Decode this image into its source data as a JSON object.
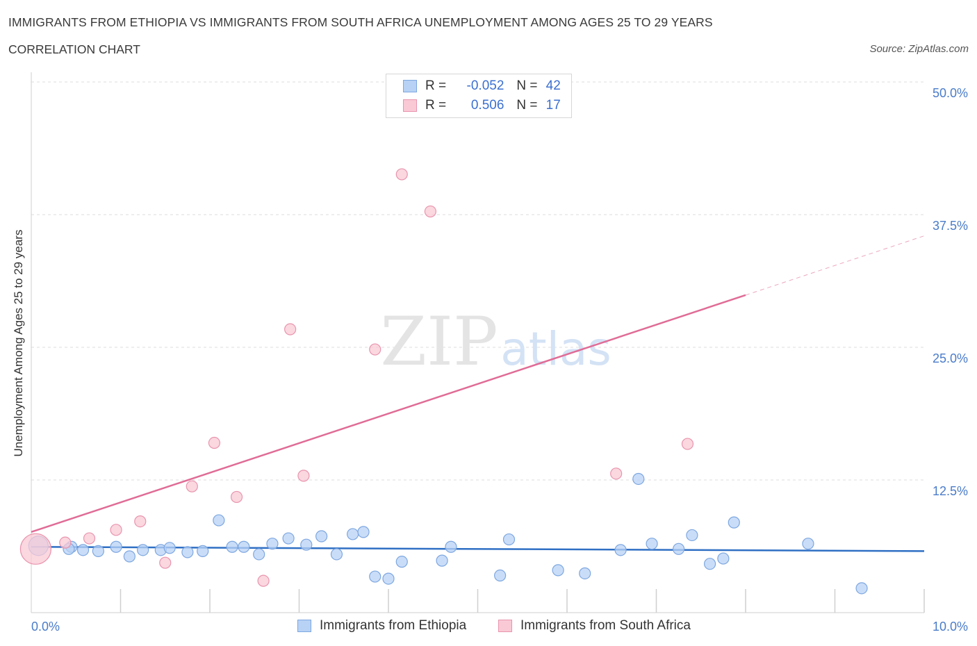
{
  "header": {
    "title": "IMMIGRANTS FROM ETHIOPIA VS IMMIGRANTS FROM SOUTH AFRICA UNEMPLOYMENT AMONG AGES 25 TO 29 YEARS",
    "subtitle": "CORRELATION CHART",
    "source": "Source: ZipAtlas.com"
  },
  "legend": {
    "ethiopia": {
      "r_label": "R =",
      "r_value": "-0.052",
      "n_label": "N =",
      "n_value": "42"
    },
    "south_africa": {
      "r_label": "R =",
      "r_value": "0.506",
      "n_label": "N =",
      "n_value": "17"
    }
  },
  "colors": {
    "ethiopia_fill": "#b8d2f5",
    "ethiopia_stroke": "#7da7e0",
    "ethiopia_line": "#2f6fc4",
    "south_africa_fill": "#f9c9d6",
    "south_africa_stroke": "#e894ad",
    "south_africa_line": "#e06c96",
    "grid": "#dcdcdc",
    "axis_text": "#4a7cc9"
  },
  "watermark": {
    "zip": "ZIP",
    "atlas": "atlas"
  },
  "chart_data": {
    "type": "scatter",
    "title": "IMMIGRANTS FROM ETHIOPIA VS IMMIGRANTS FROM SOUTH AFRICA UNEMPLOYMENT AMONG AGES 25 TO 29 YEARS",
    "subtitle": "CORRELATION CHART",
    "xlabel": "",
    "ylabel": "Unemployment Among Ages 25 to 29 years",
    "xlim": [
      0,
      10
    ],
    "ylim": [
      0,
      50
    ],
    "x_ticks": [
      0,
      10
    ],
    "x_tick_labels": [
      "0.0%",
      "10.0%"
    ],
    "y_ticks": [
      12.5,
      25,
      37.5,
      50
    ],
    "y_tick_labels": [
      "12.5%",
      "25.0%",
      "37.5%",
      "50.0%"
    ],
    "grid": true,
    "legend_position": "bottom-center",
    "series": [
      {
        "name": "Immigrants from Ethiopia",
        "key": "ethiopia",
        "R": -0.052,
        "N": 42,
        "trend": {
          "x": [
            0,
            10
          ],
          "y": [
            6.2,
            5.8
          ],
          "dashed_after": null
        },
        "points": [
          {
            "x": 0.08,
            "y": 6.3,
            "size": 14
          },
          {
            "x": 0.45,
            "y": 6.2
          },
          {
            "x": 0.42,
            "y": 6.0
          },
          {
            "x": 0.58,
            "y": 5.9
          },
          {
            "x": 0.75,
            "y": 5.8
          },
          {
            "x": 0.95,
            "y": 6.2
          },
          {
            "x": 1.1,
            "y": 5.3
          },
          {
            "x": 1.25,
            "y": 5.9
          },
          {
            "x": 1.45,
            "y": 5.9
          },
          {
            "x": 1.55,
            "y": 6.1
          },
          {
            "x": 1.75,
            "y": 5.7
          },
          {
            "x": 1.92,
            "y": 5.8
          },
          {
            "x": 2.1,
            "y": 8.7
          },
          {
            "x": 2.25,
            "y": 6.2
          },
          {
            "x": 2.38,
            "y": 6.2
          },
          {
            "x": 2.55,
            "y": 5.5
          },
          {
            "x": 2.7,
            "y": 6.5
          },
          {
            "x": 2.88,
            "y": 7.0
          },
          {
            "x": 3.08,
            "y": 6.4
          },
          {
            "x": 3.25,
            "y": 7.2
          },
          {
            "x": 3.42,
            "y": 5.5
          },
          {
            "x": 3.6,
            "y": 7.4
          },
          {
            "x": 3.72,
            "y": 7.6
          },
          {
            "x": 3.85,
            "y": 3.4
          },
          {
            "x": 4.0,
            "y": 3.2
          },
          {
            "x": 4.15,
            "y": 4.8
          },
          {
            "x": 4.6,
            "y": 4.9
          },
          {
            "x": 4.7,
            "y": 6.2
          },
          {
            "x": 5.25,
            "y": 3.5
          },
          {
            "x": 5.35,
            "y": 6.9
          },
          {
            "x": 5.9,
            "y": 4.0
          },
          {
            "x": 6.2,
            "y": 3.7
          },
          {
            "x": 6.6,
            "y": 5.9
          },
          {
            "x": 6.8,
            "y": 12.6
          },
          {
            "x": 6.95,
            "y": 6.5
          },
          {
            "x": 7.25,
            "y": 6.0
          },
          {
            "x": 7.4,
            "y": 7.3
          },
          {
            "x": 7.6,
            "y": 4.6
          },
          {
            "x": 7.75,
            "y": 5.1
          },
          {
            "x": 7.87,
            "y": 8.5
          },
          {
            "x": 8.7,
            "y": 6.5
          },
          {
            "x": 9.3,
            "y": 2.3
          }
        ]
      },
      {
        "name": "Immigrants from South Africa",
        "key": "south_africa",
        "R": 0.506,
        "N": 17,
        "trend": {
          "x": [
            0,
            10
          ],
          "y": [
            7.6,
            35.5
          ],
          "solid_until_x": 8.0
        },
        "points": [
          {
            "x": 0.05,
            "y": 6.0,
            "size": 22
          },
          {
            "x": 0.38,
            "y": 6.6
          },
          {
            "x": 0.65,
            "y": 7.0
          },
          {
            "x": 0.95,
            "y": 7.8
          },
          {
            "x": 1.22,
            "y": 8.6
          },
          {
            "x": 1.5,
            "y": 4.7
          },
          {
            "x": 1.8,
            "y": 11.9
          },
          {
            "x": 2.05,
            "y": 16.0
          },
          {
            "x": 2.3,
            "y": 10.9
          },
          {
            "x": 2.6,
            "y": 3.0
          },
          {
            "x": 2.9,
            "y": 26.7
          },
          {
            "x": 3.05,
            "y": 12.9
          },
          {
            "x": 3.85,
            "y": 24.8
          },
          {
            "x": 4.15,
            "y": 41.3
          },
          {
            "x": 4.47,
            "y": 37.8
          },
          {
            "x": 6.55,
            "y": 13.1
          },
          {
            "x": 7.35,
            "y": 15.9
          }
        ]
      }
    ]
  },
  "bottom_legend": {
    "ethiopia_label": "Immigrants from Ethiopia",
    "south_africa_label": "Immigrants from South Africa"
  }
}
